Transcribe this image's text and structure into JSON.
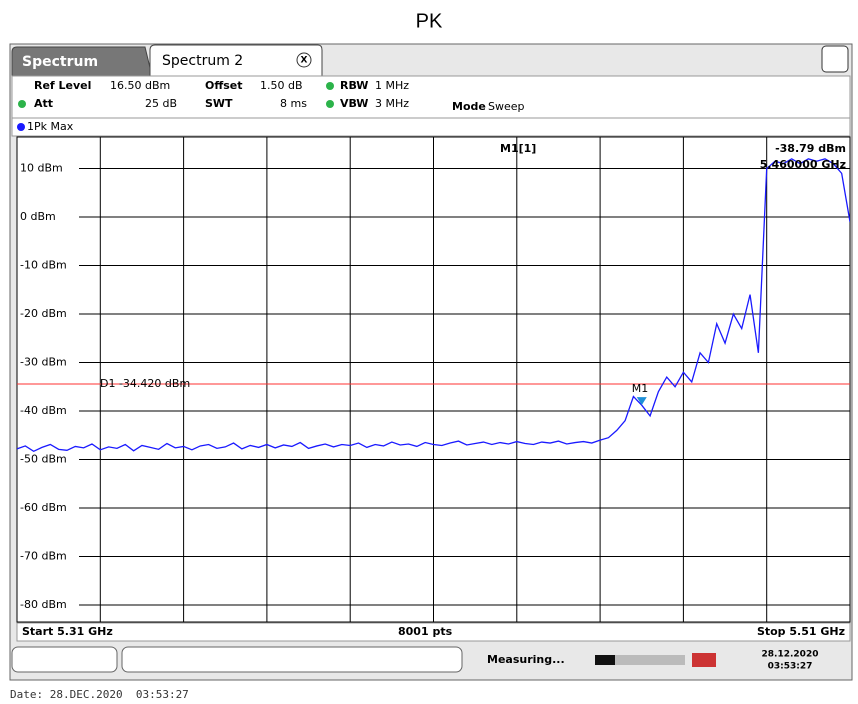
{
  "page_title": "PK",
  "tabs": [
    "Spectrum",
    "Spectrum 2"
  ],
  "tab_close": "X",
  "settings": {
    "ref_level_label": "Ref Level",
    "ref_level": "16.50 dBm",
    "offset_label": "Offset",
    "offset": "1.50 dB",
    "rbw_label": "RBW",
    "rbw": "1 MHz",
    "att_label": "Att",
    "att": "25 dB",
    "swt_label": "SWT",
    "swt": "8 ms",
    "vbw_label": "VBW",
    "vbw": "3 MHz",
    "mode_label": "Mode",
    "mode": "Sweep"
  },
  "trace_label": "1Pk Max",
  "footer": {
    "start": "Start 5.31 GHz",
    "points": "8001 pts",
    "stop": "Stop 5.51 GHz"
  },
  "status": {
    "state": "Measuring...",
    "date": "28.12.2020",
    "time": "03:53:27"
  },
  "date_line": "Date: 28.DEC.2020  03:53:27",
  "chart_data": {
    "type": "line",
    "xlim": [
      5.31,
      5.51
    ],
    "xticks": [
      5.31,
      5.33,
      5.35,
      5.37,
      5.39,
      5.41,
      5.43,
      5.45,
      5.47,
      5.49,
      5.51
    ],
    "ylim": [
      -83.5,
      16.5
    ],
    "yticks": [
      {
        "value": 10,
        "label": "10 dBm"
      },
      {
        "value": 0,
        "label": "0 dBm"
      },
      {
        "value": -10,
        "label": "-10 dBm"
      },
      {
        "value": -20,
        "label": "-20 dBm"
      },
      {
        "value": -30,
        "label": "-30 dBm"
      },
      {
        "value": -40,
        "label": "-40 dBm"
      },
      {
        "value": -50,
        "label": "-50 dBm"
      },
      {
        "value": -60,
        "label": "-60 dBm"
      },
      {
        "value": -70,
        "label": "-70 dBm"
      },
      {
        "value": -80,
        "label": "-80 dBm"
      }
    ],
    "grid": true,
    "display_line": {
      "label": "D1 -34.420 dBm",
      "value": -34.42,
      "color": "#ff3030"
    },
    "marker": {
      "label": "M1",
      "readout_label": "M1[1]",
      "value": -38.79,
      "value_label": "-38.79 dBm",
      "x": 5.46,
      "x_label": "5.460000 GHz",
      "color": "#1e90d8"
    },
    "x": [
      5.31,
      5.312,
      5.314,
      5.316,
      5.318,
      5.32,
      5.322,
      5.324,
      5.326,
      5.328,
      5.33,
      5.332,
      5.334,
      5.336,
      5.338,
      5.34,
      5.342,
      5.344,
      5.346,
      5.348,
      5.35,
      5.352,
      5.354,
      5.356,
      5.358,
      5.36,
      5.362,
      5.364,
      5.366,
      5.368,
      5.37,
      5.372,
      5.374,
      5.376,
      5.378,
      5.38,
      5.382,
      5.384,
      5.386,
      5.388,
      5.39,
      5.392,
      5.394,
      5.396,
      5.398,
      5.4,
      5.402,
      5.404,
      5.406,
      5.408,
      5.41,
      5.412,
      5.414,
      5.416,
      5.418,
      5.42,
      5.422,
      5.424,
      5.426,
      5.428,
      5.43,
      5.432,
      5.434,
      5.436,
      5.438,
      5.44,
      5.442,
      5.444,
      5.446,
      5.448,
      5.45,
      5.452,
      5.454,
      5.456,
      5.458,
      5.46,
      5.462,
      5.464,
      5.466,
      5.468,
      5.47,
      5.472,
      5.474,
      5.476,
      5.478,
      5.48,
      5.482,
      5.484,
      5.486,
      5.488,
      5.49,
      5.492,
      5.494,
      5.496,
      5.498,
      5.5,
      5.502,
      5.504,
      5.506,
      5.508,
      5.51
    ],
    "series": [
      {
        "name": "1Pk Max",
        "color": "#1a1aff",
        "values": [
          -47.8,
          -47.2,
          -48.3,
          -47.5,
          -46.9,
          -47.9,
          -48.1,
          -47.3,
          -47.6,
          -46.8,
          -48.0,
          -47.4,
          -47.7,
          -46.9,
          -48.2,
          -47.1,
          -47.5,
          -47.9,
          -46.7,
          -47.6,
          -47.3,
          -48.0,
          -47.2,
          -46.9,
          -47.7,
          -47.4,
          -46.6,
          -47.8,
          -47.1,
          -47.5,
          -46.9,
          -47.6,
          -47.0,
          -47.3,
          -46.5,
          -47.7,
          -47.2,
          -46.8,
          -47.4,
          -46.9,
          -47.1,
          -46.6,
          -47.5,
          -46.9,
          -47.2,
          -46.4,
          -47.0,
          -46.8,
          -47.3,
          -46.5,
          -46.9,
          -47.1,
          -46.6,
          -46.2,
          -47.0,
          -46.7,
          -46.4,
          -46.9,
          -46.5,
          -46.8,
          -46.3,
          -46.7,
          -46.9,
          -46.4,
          -46.6,
          -46.2,
          -46.8,
          -46.5,
          -46.3,
          -46.6,
          -46.0,
          -45.5,
          -44,
          -42,
          -37,
          -38.8,
          -41,
          -36,
          -33,
          -35,
          -32,
          -34,
          -28,
          -30,
          -22,
          -26,
          -20,
          -23,
          -16,
          -28,
          10,
          11.5,
          11,
          12,
          11,
          12,
          11.5,
          12,
          11,
          9,
          -1
        ]
      }
    ]
  }
}
